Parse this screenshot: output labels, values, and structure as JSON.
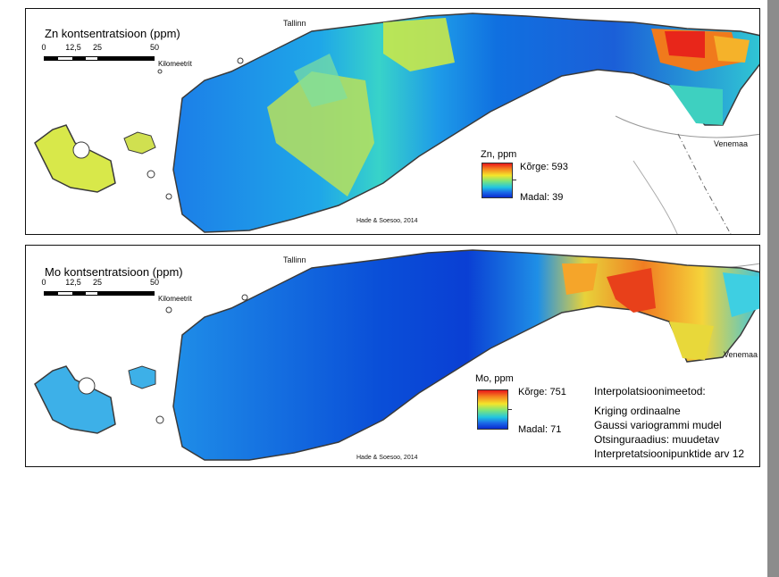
{
  "panels": {
    "zn": {
      "title": "Zn kontsentratsioon (ppm)",
      "legend_title": "Zn, ppm",
      "legend_high": "Kõrge: 593",
      "legend_low": "Madal: 39",
      "place_tallinn": "Tallinn",
      "place_venemaa": "Venemaa",
      "credit": "Hade & Soesoo, 2014"
    },
    "mo": {
      "title": "Mo kontsentratsioon (ppm)",
      "legend_title": "Mo, ppm",
      "legend_high": "Kõrge: 751",
      "legend_low": "Madal: 71",
      "place_tallinn": "Tallinn",
      "place_venemaa": "Venemaa",
      "credit": "Hade & Soesoo, 2014"
    }
  },
  "scale": {
    "ticks": [
      "0",
      "12,5",
      "25",
      "50"
    ],
    "unit": "Kilomeetrit"
  },
  "interpolation": {
    "heading": "Interpolatsioonimeetod:",
    "lines": [
      "Kriging ordinaalne",
      "Gaussi variogrammi mudel",
      "Otsinguraadius: muudetav",
      "Interpretatsioonipunktide arv 12"
    ]
  },
  "colors": {
    "ramp_high": "#e8161a",
    "ramp_mid": "#f5e52a",
    "ramp_low": "#0a2bd0",
    "coast_line": "#3a3a3a",
    "scrollbar": "#8c8c8c"
  }
}
